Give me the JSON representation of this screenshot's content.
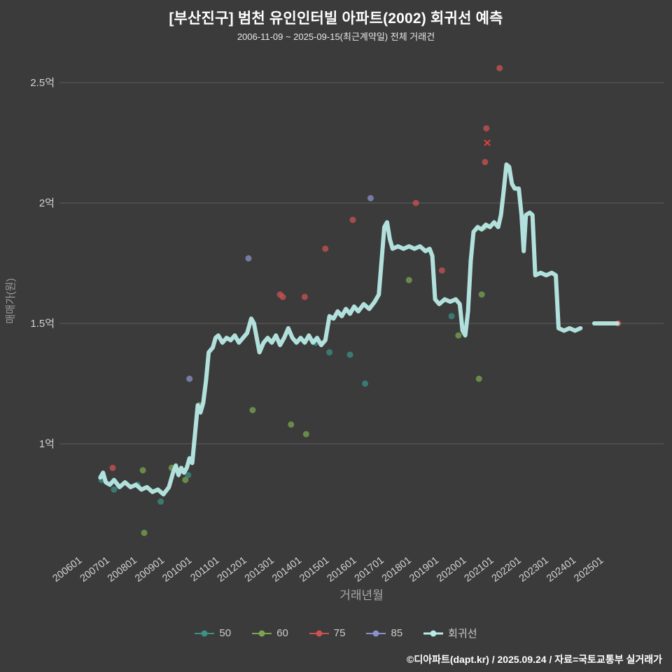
{
  "header": {
    "title": "[부산진구] 범천 유인인터빌 아파트(2002) 회귀선 예측",
    "subtitle": "2006-11-09 ~ 2025-09-15(최근계약일) 전체 거래건"
  },
  "footer": {
    "credit": "©디아파트(dapt.kr) / 2025.09.24 / 자료=국토교통부 실거래가"
  },
  "colors": {
    "background": "#3b3b3b",
    "grid": "#5c5c5c",
    "tick_label": "#d2d2d2",
    "axis_label": "#9b9b9b",
    "title": "#ffffff",
    "subtitle": "#e8e8e8",
    "x_marker": "#e03c3c"
  },
  "chart_data": {
    "type": "scatter",
    "title": "[부산진구] 범천 유인인터빌 아파트(2002) 회귀선 예측",
    "subtitle": "2006-11-09 ~ 2025-09-15(최근계약일) 전체 거래건",
    "xlabel": "거래년월",
    "ylabel": "매매가(원)",
    "grid": "horizontal",
    "legend_position": "bottom",
    "xlim": [
      2005.6,
      2026.4
    ],
    "ylim": [
      0.55,
      2.65
    ],
    "x_ticks": [
      "200601",
      "200701",
      "200801",
      "200901",
      "201001",
      "201101",
      "201201",
      "201301",
      "201401",
      "201501",
      "201601",
      "201701",
      "201801",
      "201901",
      "202001",
      "202101",
      "202201",
      "202301",
      "202401",
      "202501"
    ],
    "y_ticks": [
      {
        "value": 1.0,
        "label": "1억"
      },
      {
        "value": 1.5,
        "label": "1.5억"
      },
      {
        "value": 2.0,
        "label": "2억"
      },
      {
        "value": 2.5,
        "label": "2.5억"
      }
    ],
    "series": [
      {
        "name": "50",
        "type": "scatter",
        "color": "#3e8f86",
        "points": [
          [
            2006.9,
            0.85
          ],
          [
            2007.35,
            0.81
          ],
          [
            2008.2,
            0.83
          ],
          [
            2009.05,
            0.76
          ],
          [
            2010.05,
            0.87
          ],
          [
            2014.7,
            1.42
          ],
          [
            2015.2,
            1.38
          ],
          [
            2015.95,
            1.37
          ],
          [
            2016.5,
            1.25
          ],
          [
            2019.65,
            1.53
          ]
        ]
      },
      {
        "name": "60",
        "type": "scatter",
        "color": "#7aa650",
        "points": [
          [
            2008.4,
            0.89
          ],
          [
            2008.45,
            0.63
          ],
          [
            2009.45,
            0.9
          ],
          [
            2009.95,
            0.85
          ],
          [
            2010.45,
            1.16
          ],
          [
            2012.4,
            1.14
          ],
          [
            2013.8,
            1.08
          ],
          [
            2014.35,
            1.04
          ],
          [
            2018.1,
            1.68
          ],
          [
            2019.9,
            1.45
          ],
          [
            2020.65,
            1.27
          ],
          [
            2020.75,
            1.62
          ],
          [
            2020.85,
            1.9
          ]
        ]
      },
      {
        "name": "75",
        "type": "scatter",
        "color": "#cd5151",
        "points": [
          [
            2007.3,
            0.9
          ],
          [
            2013.4,
            1.62
          ],
          [
            2013.5,
            1.61
          ],
          [
            2014.3,
            1.61
          ],
          [
            2015.05,
            1.81
          ],
          [
            2016.05,
            1.93
          ],
          [
            2018.35,
            2.0
          ],
          [
            2019.3,
            1.72
          ],
          [
            2020.87,
            2.17
          ],
          [
            2020.92,
            2.31
          ],
          [
            2021.4,
            2.56
          ],
          [
            2025.72,
            1.5
          ]
        ],
        "x_marker_points": [
          [
            2020.95,
            2.25
          ]
        ]
      },
      {
        "name": "85",
        "type": "scatter",
        "color": "#8a91c8",
        "points": [
          [
            2010.1,
            1.27
          ],
          [
            2012.25,
            1.77
          ],
          [
            2016.7,
            2.02
          ]
        ]
      },
      {
        "name": "회귀선",
        "type": "line",
        "color": "#b8eae6",
        "width": 6,
        "points": [
          [
            2006.85,
            0.86
          ],
          [
            2006.95,
            0.88
          ],
          [
            2007.05,
            0.84
          ],
          [
            2007.2,
            0.83
          ],
          [
            2007.35,
            0.85
          ],
          [
            2007.55,
            0.82
          ],
          [
            2007.75,
            0.84
          ],
          [
            2007.95,
            0.82
          ],
          [
            2008.15,
            0.83
          ],
          [
            2008.35,
            0.81
          ],
          [
            2008.55,
            0.82
          ],
          [
            2008.75,
            0.8
          ],
          [
            2008.95,
            0.81
          ],
          [
            2009.15,
            0.79
          ],
          [
            2009.35,
            0.82
          ],
          [
            2009.5,
            0.88
          ],
          [
            2009.6,
            0.91
          ],
          [
            2009.7,
            0.87
          ],
          [
            2009.8,
            0.9
          ],
          [
            2009.9,
            0.88
          ],
          [
            2010.0,
            0.9
          ],
          [
            2010.1,
            0.94
          ],
          [
            2010.2,
            0.92
          ],
          [
            2010.3,
            1.04
          ],
          [
            2010.4,
            1.16
          ],
          [
            2010.5,
            1.13
          ],
          [
            2010.6,
            1.17
          ],
          [
            2010.7,
            1.26
          ],
          [
            2010.8,
            1.38
          ],
          [
            2010.95,
            1.4
          ],
          [
            2011.05,
            1.44
          ],
          [
            2011.15,
            1.45
          ],
          [
            2011.3,
            1.42
          ],
          [
            2011.45,
            1.44
          ],
          [
            2011.6,
            1.43
          ],
          [
            2011.75,
            1.45
          ],
          [
            2011.9,
            1.42
          ],
          [
            2012.05,
            1.44
          ],
          [
            2012.2,
            1.46
          ],
          [
            2012.35,
            1.52
          ],
          [
            2012.45,
            1.5
          ],
          [
            2012.55,
            1.44
          ],
          [
            2012.65,
            1.38
          ],
          [
            2012.8,
            1.42
          ],
          [
            2012.95,
            1.44
          ],
          [
            2013.1,
            1.42
          ],
          [
            2013.25,
            1.45
          ],
          [
            2013.4,
            1.41
          ],
          [
            2013.55,
            1.44
          ],
          [
            2013.7,
            1.48
          ],
          [
            2013.85,
            1.44
          ],
          [
            2014.0,
            1.42
          ],
          [
            2014.15,
            1.44
          ],
          [
            2014.3,
            1.42
          ],
          [
            2014.45,
            1.45
          ],
          [
            2014.6,
            1.42
          ],
          [
            2014.75,
            1.44
          ],
          [
            2014.9,
            1.41
          ],
          [
            2015.05,
            1.43
          ],
          [
            2015.2,
            1.53
          ],
          [
            2015.35,
            1.52
          ],
          [
            2015.5,
            1.55
          ],
          [
            2015.65,
            1.53
          ],
          [
            2015.8,
            1.56
          ],
          [
            2015.95,
            1.54
          ],
          [
            2016.1,
            1.57
          ],
          [
            2016.25,
            1.55
          ],
          [
            2016.45,
            1.58
          ],
          [
            2016.65,
            1.56
          ],
          [
            2016.85,
            1.59
          ],
          [
            2017.0,
            1.62
          ],
          [
            2017.1,
            1.76
          ],
          [
            2017.2,
            1.9
          ],
          [
            2017.3,
            1.92
          ],
          [
            2017.4,
            1.85
          ],
          [
            2017.5,
            1.81
          ],
          [
            2017.7,
            1.82
          ],
          [
            2017.9,
            1.81
          ],
          [
            2018.1,
            1.82
          ],
          [
            2018.3,
            1.81
          ],
          [
            2018.5,
            1.82
          ],
          [
            2018.7,
            1.8
          ],
          [
            2018.85,
            1.81
          ],
          [
            2018.95,
            1.78
          ],
          [
            2019.05,
            1.6
          ],
          [
            2019.2,
            1.58
          ],
          [
            2019.4,
            1.6
          ],
          [
            2019.6,
            1.59
          ],
          [
            2019.8,
            1.6
          ],
          [
            2019.95,
            1.58
          ],
          [
            2020.05,
            1.47
          ],
          [
            2020.15,
            1.45
          ],
          [
            2020.25,
            1.55
          ],
          [
            2020.35,
            1.76
          ],
          [
            2020.45,
            1.88
          ],
          [
            2020.6,
            1.9
          ],
          [
            2020.75,
            1.89
          ],
          [
            2020.9,
            1.91
          ],
          [
            2021.05,
            1.9
          ],
          [
            2021.2,
            1.92
          ],
          [
            2021.35,
            1.9
          ],
          [
            2021.45,
            1.95
          ],
          [
            2021.55,
            2.05
          ],
          [
            2021.65,
            2.16
          ],
          [
            2021.75,
            2.15
          ],
          [
            2021.85,
            2.08
          ],
          [
            2021.95,
            2.06
          ],
          [
            2022.1,
            2.06
          ],
          [
            2022.2,
            1.95
          ],
          [
            2022.28,
            1.8
          ],
          [
            2022.36,
            1.95
          ],
          [
            2022.5,
            1.96
          ],
          [
            2022.6,
            1.95
          ],
          [
            2022.7,
            1.7
          ],
          [
            2022.9,
            1.71
          ],
          [
            2023.1,
            1.7
          ],
          [
            2023.3,
            1.71
          ],
          [
            2023.45,
            1.7
          ],
          [
            2023.55,
            1.48
          ],
          [
            2023.75,
            1.47
          ],
          [
            2023.95,
            1.48
          ],
          [
            2024.15,
            1.47
          ],
          [
            2024.35,
            1.48
          ],
          null,
          [
            2024.85,
            1.5
          ],
          [
            2025.1,
            1.5
          ],
          [
            2025.4,
            1.5
          ],
          [
            2025.7,
            1.5
          ]
        ]
      }
    ]
  }
}
